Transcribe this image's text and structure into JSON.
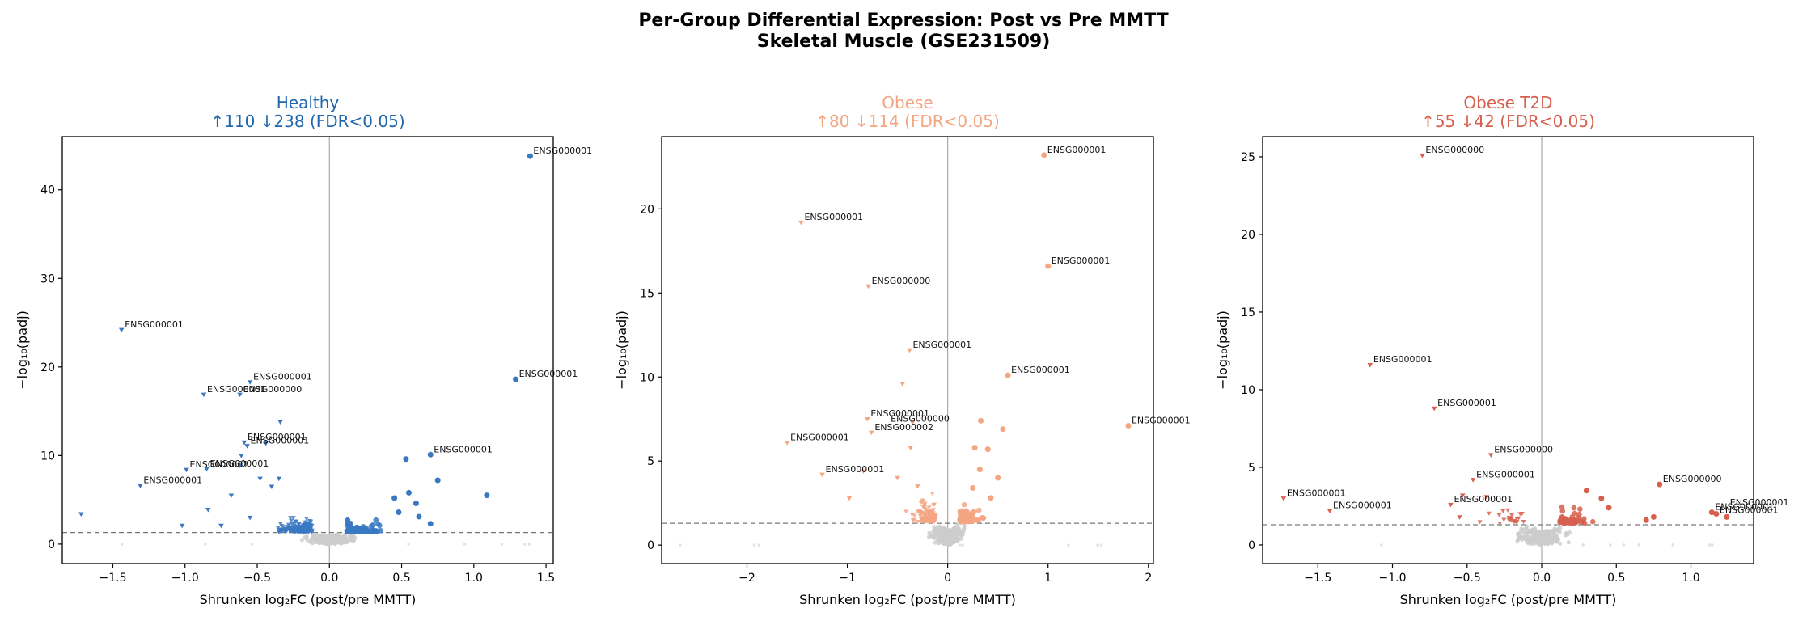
{
  "figure": {
    "title_line1": "Per-Group Differential Expression: Post vs Pre MMTT",
    "title_line2": "Skeletal Muscle (GSE231509)"
  },
  "chart_data": [
    {
      "type": "scatter",
      "subtype": "volcano",
      "title": "Healthy",
      "subtitle": "↑110  ↓238  (FDR<0.05)",
      "color": "#2166ac",
      "point_color": "#3a78c2",
      "xlabel": "Shrunken log₂FC (post/pre MMTT)",
      "ylabel": "−log₁₀(padj)",
      "xlim": [
        -1.85,
        1.55
      ],
      "ylim": [
        -2.2,
        46
      ],
      "xticks": [
        -1.5,
        -1.0,
        -0.5,
        0.0,
        0.5,
        1.0,
        1.5
      ],
      "xticklabels": [
        "−1.5",
        "−1.0",
        "−0.5",
        "0.0",
        "0.5",
        "1.0",
        "1.5"
      ],
      "yticks": [
        0,
        10,
        20,
        30,
        40
      ],
      "yticklabels": [
        "0",
        "10",
        "20",
        "30",
        "40"
      ],
      "threshold_y": 1.3,
      "n_background": 260,
      "n_up_dense": 100,
      "n_down_dense": 190,
      "significant_up": [
        [
          1.39,
          43.8
        ],
        [
          1.29,
          18.6
        ],
        [
          0.7,
          10.1
        ],
        [
          0.53,
          9.6
        ],
        [
          0.75,
          7.2
        ],
        [
          1.09,
          5.5
        ],
        [
          0.55,
          5.8
        ],
        [
          0.45,
          5.2
        ],
        [
          0.6,
          4.6
        ],
        [
          0.48,
          3.6
        ],
        [
          0.7,
          2.3
        ],
        [
          0.62,
          3.1
        ]
      ],
      "significant_down": [
        [
          -1.44,
          24.2
        ],
        [
          -0.87,
          16.9
        ],
        [
          -0.62,
          16.9
        ],
        [
          -0.55,
          18.3
        ],
        [
          -0.34,
          13.8
        ],
        [
          -0.59,
          11.5
        ],
        [
          -0.57,
          11.1
        ],
        [
          -0.44,
          11.4
        ],
        [
          -0.99,
          8.4
        ],
        [
          -0.85,
          8.5
        ],
        [
          -0.62,
          8.9
        ],
        [
          -1.31,
          6.6
        ],
        [
          -0.61,
          10.0
        ],
        [
          -0.48,
          7.4
        ],
        [
          -0.35,
          7.4
        ],
        [
          -1.72,
          3.4
        ],
        [
          -1.02,
          2.1
        ],
        [
          -0.84,
          3.9
        ],
        [
          -0.75,
          2.1
        ],
        [
          -0.55,
          3.0
        ],
        [
          -0.68,
          5.5
        ],
        [
          -0.4,
          6.5
        ]
      ],
      "labels": [
        {
          "text": "ENSG000001",
          "x": 1.39,
          "y": 43.8
        },
        {
          "text": "ENSG000001",
          "x": 1.29,
          "y": 18.6
        },
        {
          "text": "ENSG000001",
          "x": 0.7,
          "y": 10.1
        },
        {
          "text": "ENSG000001",
          "x": -1.44,
          "y": 24.2
        },
        {
          "text": "ENSG000001",
          "x": -0.55,
          "y": 18.3
        },
        {
          "text": "ENSG000001",
          "x": -0.87,
          "y": 16.9
        },
        {
          "text": "ENSG000000",
          "x": -0.62,
          "y": 16.9
        },
        {
          "text": "ENSG000001",
          "x": -0.59,
          "y": 11.5
        },
        {
          "text": "ENSG000001",
          "x": -0.57,
          "y": 11.1
        },
        {
          "text": "ENSG000001",
          "x": -0.85,
          "y": 8.5
        },
        {
          "text": "ENSG000001",
          "x": -0.99,
          "y": 8.4
        },
        {
          "text": "ENSG000001",
          "x": -1.31,
          "y": 6.6
        }
      ]
    },
    {
      "type": "scatter",
      "subtype": "volcano",
      "title": "Obese",
      "subtitle": "↑80  ↓114  (FDR<0.05)",
      "color": "#f4a582",
      "point_color": "#f4a582",
      "xlabel": "Shrunken log₂FC (post/pre MMTT)",
      "ylabel": "−log₁₀(padj)",
      "xlim": [
        -2.85,
        2.05
      ],
      "ylim": [
        -1.1,
        24.3
      ],
      "xticks": [
        -2,
        -1,
        0,
        1,
        2
      ],
      "xticklabels": [
        "−2",
        "−1",
        "0",
        "1",
        "2"
      ],
      "yticks": [
        0,
        5,
        10,
        15,
        20
      ],
      "yticklabels": [
        "0",
        "5",
        "10",
        "15",
        "20"
      ],
      "threshold_y": 1.3,
      "n_background": 260,
      "n_up_dense": 75,
      "n_down_dense": 100,
      "significant_up": [
        [
          0.96,
          23.2
        ],
        [
          1.0,
          16.6
        ],
        [
          0.6,
          10.1
        ],
        [
          1.8,
          7.1
        ],
        [
          0.33,
          7.4
        ],
        [
          0.55,
          6.9
        ],
        [
          0.27,
          5.8
        ],
        [
          0.4,
          5.7
        ],
        [
          0.32,
          4.5
        ],
        [
          0.5,
          4.0
        ],
        [
          0.25,
          3.4
        ],
        [
          0.43,
          2.8
        ]
      ],
      "significant_down": [
        [
          -1.46,
          19.2
        ],
        [
          -0.79,
          15.4
        ],
        [
          -0.38,
          11.6
        ],
        [
          -0.45,
          9.6
        ],
        [
          -0.8,
          7.5
        ],
        [
          -0.35,
          7.3
        ],
        [
          -0.76,
          6.7
        ],
        [
          -1.6,
          6.1
        ],
        [
          -1.25,
          4.2
        ],
        [
          -0.84,
          4.4
        ],
        [
          -0.37,
          5.8
        ],
        [
          -0.5,
          4.0
        ],
        [
          -0.98,
          2.8
        ],
        [
          -0.3,
          3.5
        ]
      ],
      "labels": [
        {
          "text": "ENSG000001",
          "x": 0.96,
          "y": 23.2
        },
        {
          "text": "ENSG000001",
          "x": 1.0,
          "y": 16.6
        },
        {
          "text": "ENSG000001",
          "x": 0.6,
          "y": 10.1
        },
        {
          "text": "ENSG000001",
          "x": 1.8,
          "y": 7.1
        },
        {
          "text": "ENSG000001",
          "x": -1.46,
          "y": 19.2
        },
        {
          "text": "ENSG000000",
          "x": -0.79,
          "y": 15.4
        },
        {
          "text": "ENSG000001",
          "x": -0.38,
          "y": 11.6
        },
        {
          "text": "ENSG000001",
          "x": -0.8,
          "y": 7.5
        },
        {
          "text": "ENSG000000",
          "x": -0.6,
          "y": 7.2
        },
        {
          "text": "ENSG000002",
          "x": -0.76,
          "y": 6.7
        },
        {
          "text": "ENSG000001",
          "x": -1.6,
          "y": 6.1
        },
        {
          "text": "ENSG000001",
          "x": -1.25,
          "y": 4.2
        }
      ]
    },
    {
      "type": "scatter",
      "subtype": "volcano",
      "title": "Obese T2D",
      "subtitle": "↑55  ↓42  (FDR<0.05)",
      "color": "#d6604d",
      "point_color": "#d6604d",
      "xlabel": "Shrunken log₂FC (post/pre MMTT)",
      "ylabel": "−log₁₀(padj)",
      "xlim": [
        -1.87,
        1.42
      ],
      "ylim": [
        -1.2,
        26.3
      ],
      "xticks": [
        -1.5,
        -1.0,
        -0.5,
        0.0,
        0.5,
        1.0
      ],
      "xticklabels": [
        "−1.5",
        "−1.0",
        "−0.5",
        "0.0",
        "0.5",
        "1.0"
      ],
      "yticks": [
        0,
        5,
        10,
        15,
        20,
        25
      ],
      "yticklabels": [
        "0",
        "5",
        "10",
        "15",
        "20",
        "25"
      ],
      "threshold_y": 1.3,
      "n_background": 220,
      "n_up_dense": 55,
      "n_down_dense": 22,
      "significant_up": [
        [
          0.79,
          3.9
        ],
        [
          1.14,
          2.1
        ],
        [
          1.17,
          2.0
        ],
        [
          1.24,
          1.8
        ],
        [
          0.4,
          3.0
        ],
        [
          0.3,
          3.5
        ],
        [
          0.45,
          2.4
        ],
        [
          0.7,
          1.6
        ],
        [
          0.75,
          1.8
        ]
      ],
      "significant_down": [
        [
          -0.8,
          25.1
        ],
        [
          -1.15,
          11.6
        ],
        [
          -0.72,
          8.8
        ],
        [
          -0.34,
          5.8
        ],
        [
          -0.46,
          4.2
        ],
        [
          -0.53,
          3.2
        ],
        [
          -1.73,
          3.0
        ],
        [
          -1.42,
          2.2
        ],
        [
          -0.37,
          3.1
        ],
        [
          -0.55,
          1.8
        ],
        [
          -0.61,
          2.6
        ]
      ],
      "labels": [
        {
          "text": "ENSG000000",
          "x": -0.8,
          "y": 25.1
        },
        {
          "text": "ENSG000001",
          "x": -1.15,
          "y": 11.6
        },
        {
          "text": "ENSG000001",
          "x": -0.72,
          "y": 8.8
        },
        {
          "text": "ENSG000000",
          "x": -0.34,
          "y": 5.8
        },
        {
          "text": "ENSG000001",
          "x": -0.46,
          "y": 4.2
        },
        {
          "text": "ENSG000001",
          "x": -0.61,
          "y": 2.6
        },
        {
          "text": "ENSG000001",
          "x": -1.73,
          "y": 3.0
        },
        {
          "text": "ENSG000001",
          "x": -1.42,
          "y": 2.2
        },
        {
          "text": "ENSG000000",
          "x": 0.79,
          "y": 3.9
        },
        {
          "text": "ENSG000001",
          "x": 1.24,
          "y": 2.4
        },
        {
          "text": "ENSG000001",
          "x": 1.14,
          "y": 2.1
        },
        {
          "text": "ENSG000001",
          "x": 1.17,
          "y": 1.9
        }
      ]
    }
  ]
}
